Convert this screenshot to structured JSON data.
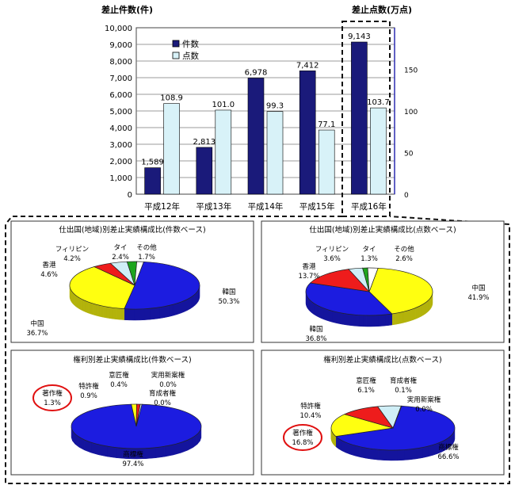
{
  "chart_data": [
    {
      "type": "bar",
      "ylabel_left": "差止件数(件)",
      "ylabel_right": "差止点数(万点)",
      "categories": [
        "平成12年",
        "平成13年",
        "平成14年",
        "平成15年",
        "平成16年"
      ],
      "ylim_left": [
        0,
        10000
      ],
      "ylim_right": [
        0,
        200
      ],
      "left_ticks": [
        "0",
        "1,000",
        "2,000",
        "3,000",
        "4,000",
        "5,000",
        "6,000",
        "7,000",
        "8,000",
        "9,000",
        "10,000"
      ],
      "right_ticks": [
        "0",
        "50",
        "100",
        "150"
      ],
      "grid": true,
      "legend_position": "top-left",
      "series": [
        {
          "name": "件数",
          "axis": "left",
          "color": "#1a1a7a",
          "values": [
            1589,
            2813,
            6978,
            7412,
            9143
          ],
          "labels": [
            "1,589",
            "2,813",
            "6,978",
            "7,412",
            "9,143"
          ]
        },
        {
          "name": "点数",
          "axis": "right",
          "color": "#d8f2f8",
          "values": [
            108.9,
            101.0,
            99.3,
            77.1,
            103.7
          ],
          "labels": [
            "108.9",
            "101.0",
            "99.3",
            "77.1",
            "103.7"
          ]
        }
      ]
    },
    {
      "type": "pie",
      "title": "仕出国(地域)別差止実績構成比(件数ベース)",
      "slices": [
        {
          "name": "韓国",
          "value": 50.3,
          "label": "50.3%",
          "color": "#1c1ce0"
        },
        {
          "name": "中国",
          "value": 36.7,
          "label": "36.7%",
          "color": "#ffff10"
        },
        {
          "name": "香港",
          "value": 4.6,
          "label": "4.6%",
          "color": "#ee1c1c"
        },
        {
          "name": "フィリピン",
          "value": 4.2,
          "label": "4.2%",
          "color": "#cfeef6"
        },
        {
          "name": "タイ",
          "value": 2.4,
          "label": "2.4%",
          "color": "#1ea51e"
        },
        {
          "name": "その他",
          "value": 1.7,
          "label": "1.7%",
          "color": "#ffffff"
        }
      ]
    },
    {
      "type": "pie",
      "title": "仕出国(地域)別差止実績構成比(点数ベース)",
      "slices": [
        {
          "name": "中国",
          "value": 41.9,
          "label": "41.9%",
          "color": "#ffff10"
        },
        {
          "name": "韓国",
          "value": 36.8,
          "label": "36.8%",
          "color": "#1c1ce0"
        },
        {
          "name": "香港",
          "value": 13.7,
          "label": "13.7%",
          "color": "#ee1c1c"
        },
        {
          "name": "フィリピン",
          "value": 3.6,
          "label": "3.6%",
          "color": "#cfeef6"
        },
        {
          "name": "タイ",
          "value": 1.3,
          "label": "1.3%",
          "color": "#1ea51e"
        },
        {
          "name": "その他",
          "value": 2.6,
          "label": "2.6%",
          "color": "#ffffff"
        }
      ]
    },
    {
      "type": "pie",
      "title": "権利別差止実績構成比(件数ベース)",
      "slices": [
        {
          "name": "商標権",
          "value": 97.4,
          "label": "97.4%",
          "color": "#1c1ce0"
        },
        {
          "name": "著作権",
          "value": 1.3,
          "label": "1.3%",
          "color": "#ffff10"
        },
        {
          "name": "特許権",
          "value": 0.9,
          "label": "0.9%",
          "color": "#ee1c1c"
        },
        {
          "name": "意匠権",
          "value": 0.4,
          "label": "0.4%",
          "color": "#cfeef6"
        },
        {
          "name": "実用新案権",
          "value": 0.0,
          "label": "0.0%",
          "color": "#1ea51e"
        },
        {
          "name": "育成者権",
          "value": 0.0,
          "label": "0.0%",
          "color": "#ffffff"
        }
      ]
    },
    {
      "type": "pie",
      "title": "権利別差止実績構成比(点数ベース)",
      "slices": [
        {
          "name": "商標権",
          "value": 66.6,
          "label": "66.6%",
          "color": "#1c1ce0"
        },
        {
          "name": "著作権",
          "value": 16.8,
          "label": "16.8%",
          "color": "#ffff10"
        },
        {
          "name": "特許権",
          "value": 10.4,
          "label": "10.4%",
          "color": "#ee1c1c"
        },
        {
          "name": "意匠権",
          "value": 6.1,
          "label": "6.1%",
          "color": "#cfeef6"
        },
        {
          "name": "育成者権",
          "value": 0.1,
          "label": "0.1%",
          "color": "#ffffff"
        },
        {
          "name": "実用新案権",
          "value": 0.0,
          "label": "0.0%",
          "color": "#1ea51e"
        }
      ]
    }
  ]
}
